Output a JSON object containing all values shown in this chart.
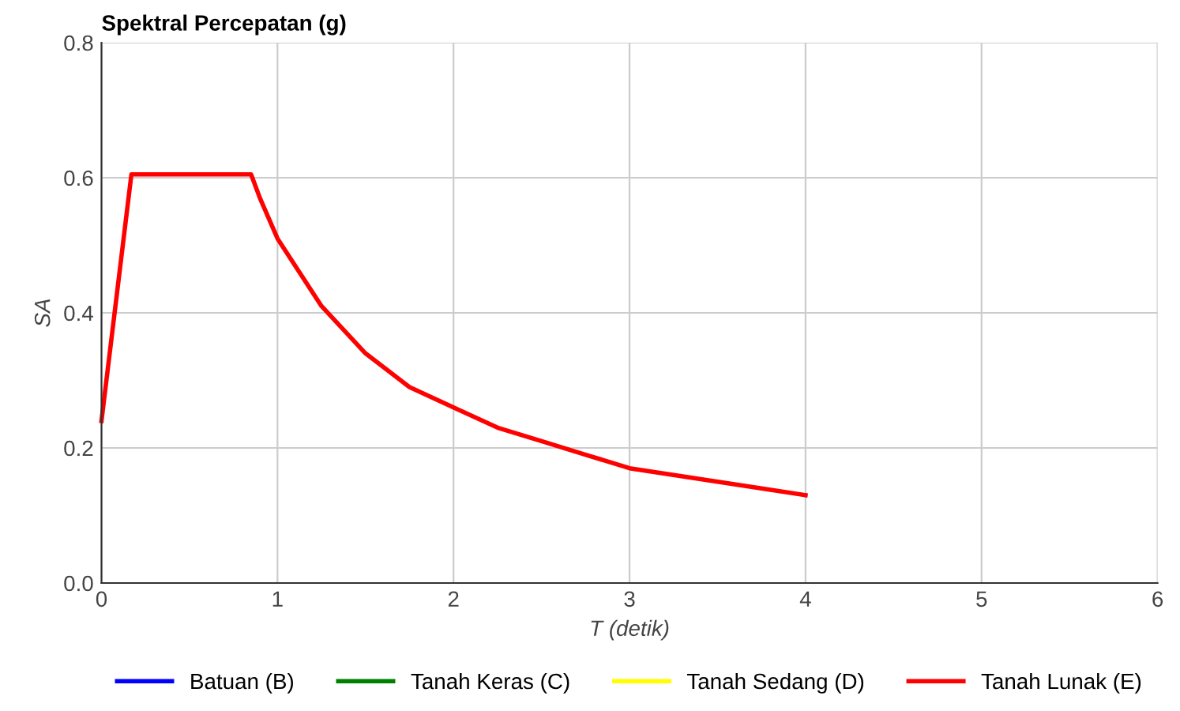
{
  "chart_data": {
    "type": "line",
    "title": "Spektral Percepatan (g)",
    "xlabel": "T (detik)",
    "ylabel": "SA",
    "xlim": [
      0,
      6
    ],
    "xticks": [
      0,
      1,
      2,
      3,
      4,
      5,
      6
    ],
    "ylim": [
      0,
      0.8
    ],
    "yticks": [
      {
        "value": 0,
        "label": "0.0"
      },
      {
        "value": 0.2,
        "label": "0.2"
      },
      {
        "value": 0.4,
        "label": "0.4"
      },
      {
        "value": 0.6,
        "label": "0.6"
      },
      {
        "value": 0.8,
        "label": "0.8"
      }
    ],
    "grid": true,
    "legend": "bottom",
    "marker": "none",
    "line_style": "solid",
    "series": [
      {
        "name": "Batuan (B)",
        "color": "#0000ff"
      },
      {
        "name": "Tanah Keras (C)",
        "color": "#008000"
      },
      {
        "name": "Tanah Sedang (D)",
        "color": "#ffff00"
      },
      {
        "name": "Tanah Lunak (E)",
        "color": "#ff0000",
        "x": [
          0,
          0.17,
          0.85,
          0.9,
          1.0,
          1.1,
          1.25,
          1.5,
          1.75,
          2.0,
          2.25,
          2.5,
          2.75,
          3.0,
          3.25,
          3.5,
          3.75,
          4.0
        ],
        "values": [
          0.24,
          0.605,
          0.605,
          0.57,
          0.51,
          0.47,
          0.41,
          0.34,
          0.29,
          0.26,
          0.23,
          0.21,
          0.19,
          0.17,
          0.16,
          0.15,
          0.14,
          0.13
        ]
      }
    ]
  }
}
